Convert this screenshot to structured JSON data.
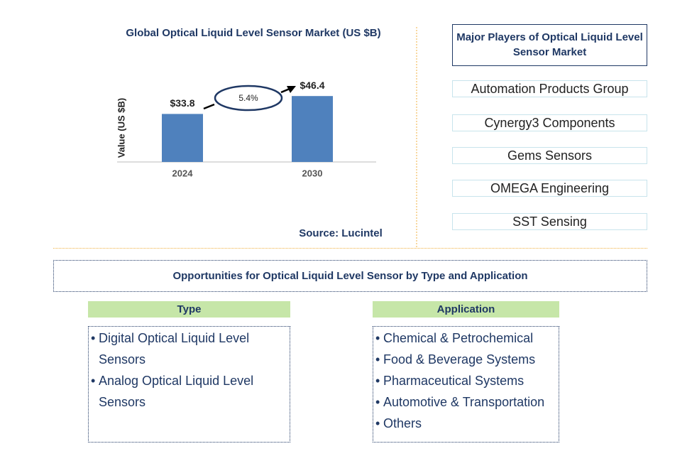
{
  "chart_data": {
    "type": "bar",
    "title": "Global Optical Liquid Level Sensor Market (US $B)",
    "y_label": "Value (US $B)",
    "categories": [
      "2024",
      "2030"
    ],
    "values": [
      33.8,
      46.4
    ],
    "value_labels": [
      "$33.8",
      "$46.4"
    ],
    "color": "#4f81bd",
    "ylim": [
      0,
      50
    ],
    "annotation": "5.4%",
    "source": "Source: Lucintel"
  },
  "players": {
    "title": "Major Players of Optical Liquid Level Sensor Market",
    "items": [
      "Automation Products Group",
      "Cynergy3 Components",
      "Gems Sensors",
      "OMEGA Engineering",
      "SST Sensing"
    ]
  },
  "opportunities": {
    "title": "Opportunities for Optical Liquid Level Sensor by Type and Application",
    "type": {
      "header": "Type",
      "items": [
        "Digital Optical Liquid Level Sensors",
        "Analog Optical Liquid Level Sensors"
      ]
    },
    "application": {
      "header": "Application",
      "items": [
        "Chemical & Petrochemical",
        "Food & Beverage Systems",
        "Pharmaceutical Systems",
        "Automotive & Transportation",
        "Others"
      ]
    }
  }
}
